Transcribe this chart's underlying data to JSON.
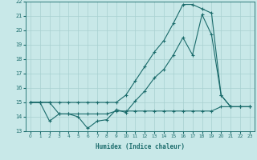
{
  "title": "",
  "xlabel": "Humidex (Indice chaleur)",
  "bg_color": "#c8e8e8",
  "line_color": "#1a6b6b",
  "grid_color": "#a8d0d0",
  "xlim": [
    -0.5,
    23.5
  ],
  "ylim": [
    13,
    22
  ],
  "xticks": [
    0,
    1,
    2,
    3,
    4,
    5,
    6,
    7,
    8,
    9,
    10,
    11,
    12,
    13,
    14,
    15,
    16,
    17,
    18,
    19,
    20,
    21,
    22,
    23
  ],
  "yticks": [
    13,
    14,
    15,
    16,
    17,
    18,
    19,
    20,
    21,
    22
  ],
  "series1_x": [
    0,
    1,
    2,
    3,
    4,
    5,
    6,
    7,
    8,
    9,
    10,
    11,
    12,
    13,
    14,
    15,
    16,
    17,
    18,
    19,
    20,
    21,
    22,
    23
  ],
  "series1_y": [
    15.0,
    15.0,
    13.7,
    14.2,
    14.2,
    14.0,
    13.2,
    13.7,
    13.8,
    14.5,
    14.3,
    15.1,
    15.8,
    16.7,
    17.3,
    18.3,
    19.5,
    18.3,
    21.1,
    19.7,
    15.5,
    14.7,
    14.7,
    14.7
  ],
  "series2_x": [
    0,
    1,
    2,
    3,
    4,
    5,
    6,
    7,
    8,
    9,
    10,
    11,
    12,
    13,
    14,
    15,
    16,
    17,
    18,
    19,
    20,
    21,
    22,
    23
  ],
  "series2_y": [
    15.0,
    15.0,
    15.0,
    15.0,
    15.0,
    15.0,
    15.0,
    15.0,
    15.0,
    15.0,
    15.5,
    16.5,
    17.5,
    18.5,
    19.3,
    20.5,
    21.8,
    21.8,
    21.5,
    21.2,
    15.5,
    14.7,
    14.7,
    14.7
  ],
  "series3_x": [
    0,
    1,
    2,
    3,
    4,
    5,
    6,
    7,
    8,
    9,
    10,
    11,
    12,
    13,
    14,
    15,
    16,
    17,
    18,
    19,
    20,
    21,
    22,
    23
  ],
  "series3_y": [
    15.0,
    15.0,
    15.0,
    14.2,
    14.2,
    14.2,
    14.2,
    14.2,
    14.2,
    14.4,
    14.4,
    14.4,
    14.4,
    14.4,
    14.4,
    14.4,
    14.4,
    14.4,
    14.4,
    14.4,
    14.7,
    14.7,
    14.7,
    14.7
  ]
}
